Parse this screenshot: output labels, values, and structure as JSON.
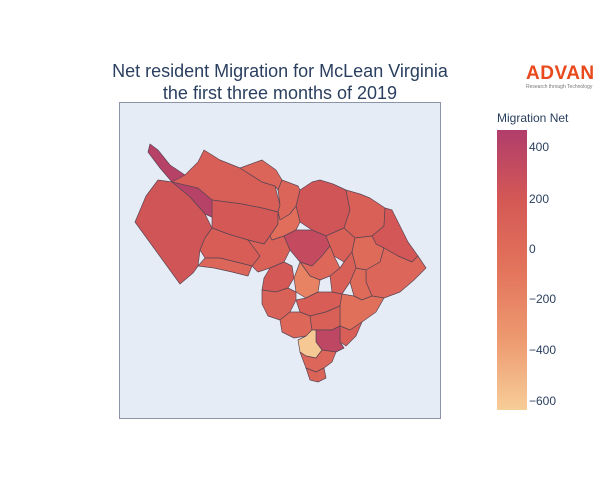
{
  "title": {
    "line1": "Net resident Migration for McLean Virginia",
    "line2": "the first three months of 2019"
  },
  "logo": {
    "name": "ADVAN",
    "tagline": "Research through Technology"
  },
  "colorbar": {
    "title": "Migration Net",
    "ticks": [
      "400",
      "200",
      "0",
      "−200",
      "−400",
      "−600"
    ],
    "range": [
      -640,
      480
    ],
    "colors": [
      "#f7cd98",
      "#ed9a70",
      "#e3745c",
      "#d45855",
      "#b13d6b"
    ]
  },
  "map": {
    "background": "#e5ecf6",
    "region": "McLean, Virginia",
    "regions": [
      {
        "id": "nw-strip",
        "value": 430
      },
      {
        "id": "west-large",
        "value": 230
      },
      {
        "id": "north-central",
        "value": 130
      },
      {
        "id": "top-center",
        "value": 70
      },
      {
        "id": "west-center",
        "value": 200
      },
      {
        "id": "north-east-a",
        "value": 230
      },
      {
        "id": "north-east-b",
        "value": 120
      },
      {
        "id": "north-east-c",
        "value": 70
      },
      {
        "id": "east-coast",
        "value": 210
      },
      {
        "id": "central-north",
        "value": -20
      },
      {
        "id": "south-west-a",
        "value": 150
      },
      {
        "id": "south-west-b",
        "value": 60
      },
      {
        "id": "central-a",
        "value": 110
      },
      {
        "id": "central-b",
        "value": 200
      },
      {
        "id": "central-dark",
        "value": 330
      },
      {
        "id": "east-a",
        "value": 120
      },
      {
        "id": "east-b",
        "value": 20
      },
      {
        "id": "east-c",
        "value": 60
      },
      {
        "id": "south-a",
        "value": 40
      },
      {
        "id": "south-b",
        "value": -180
      },
      {
        "id": "south-c",
        "value": 120
      },
      {
        "id": "south-d",
        "value": 20
      },
      {
        "id": "south-e",
        "value": 100
      },
      {
        "id": "south-f",
        "value": 150
      },
      {
        "id": "se-strip",
        "value": -40
      },
      {
        "id": "south-g",
        "value": 40
      },
      {
        "id": "south-h",
        "value": 120
      },
      {
        "id": "south-i",
        "value": 130
      },
      {
        "id": "south-dark",
        "value": 380
      },
      {
        "id": "south-light",
        "value": -610
      },
      {
        "id": "south-j",
        "value": 60
      },
      {
        "id": "south-tip",
        "value": 80
      }
    ]
  }
}
